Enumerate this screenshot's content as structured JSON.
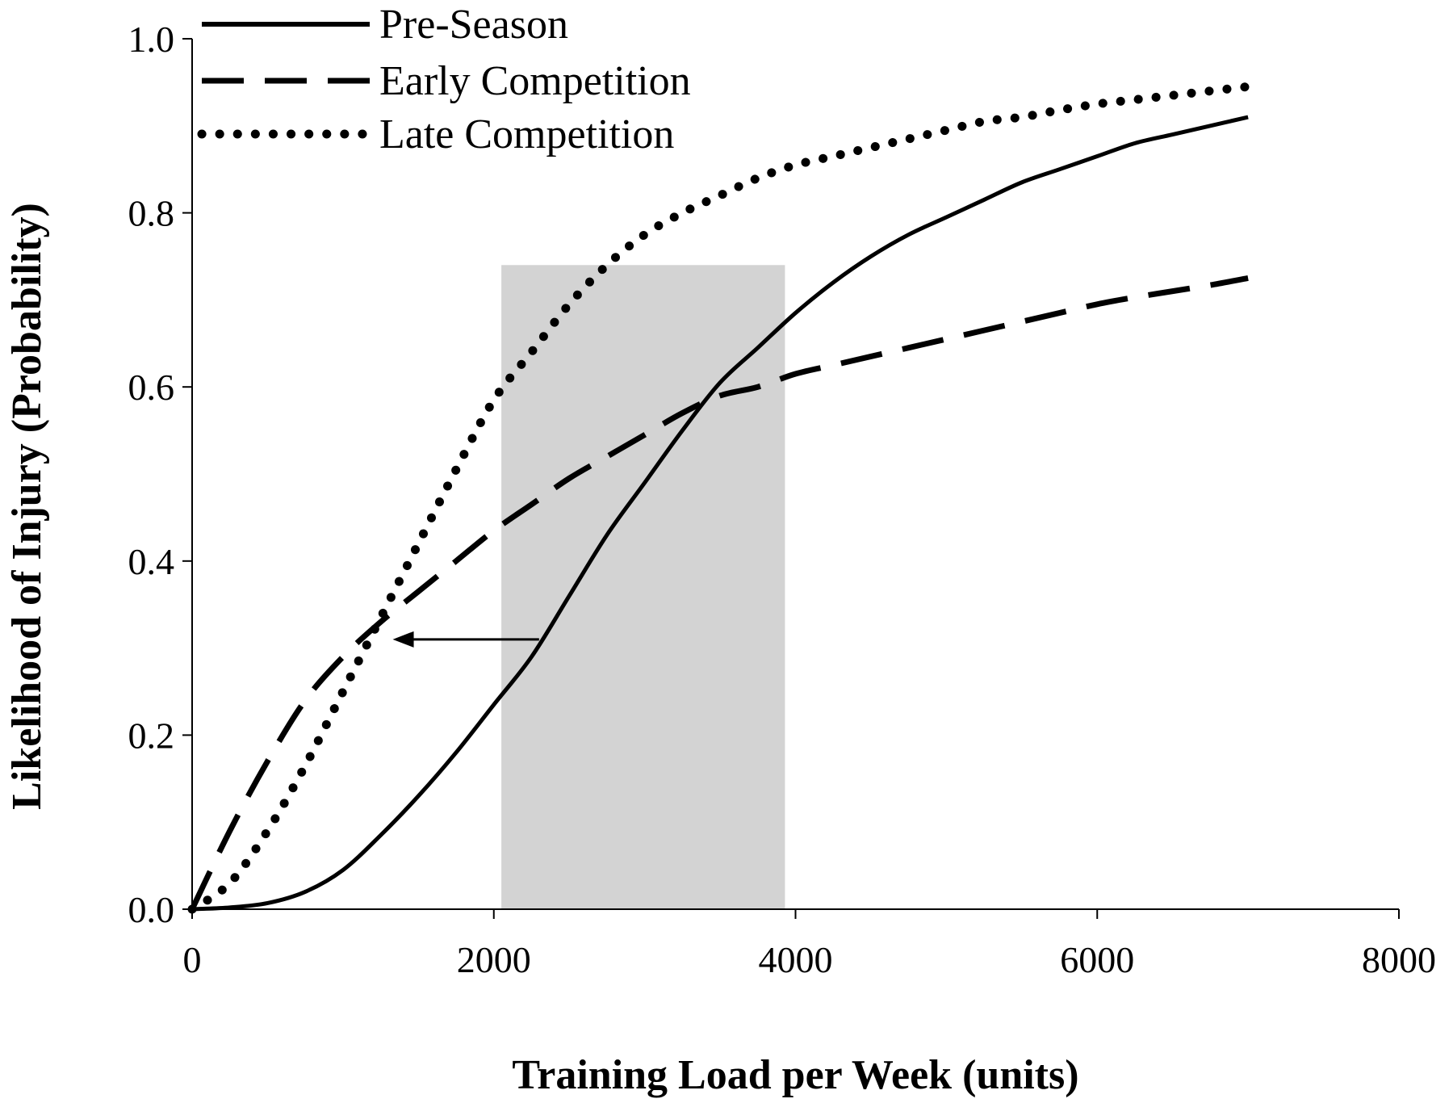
{
  "chart_data": {
    "type": "line",
    "title": "",
    "xlabel": "Training Load per Week (units)",
    "ylabel": "Likelihood of Injury (Probability)",
    "xlim": [
      0,
      8000
    ],
    "ylim": [
      0,
      1.0
    ],
    "x_ticks": [
      "0",
      "2000",
      "4000",
      "6000",
      "8000"
    ],
    "y_ticks": [
      "0.0",
      "0.2",
      "0.4",
      "0.6",
      "0.8",
      "1.0"
    ],
    "grid": false,
    "legend_position": "top-left",
    "shaded_region": {
      "x_start": 2050,
      "x_end": 3930,
      "y_top": 0.74,
      "color": "#d3d3d3"
    },
    "annotation_arrow": {
      "from": [
        2300,
        0.31
      ],
      "to": [
        1330,
        0.31
      ]
    },
    "series": [
      {
        "name": "Pre-Season",
        "style": "solid",
        "x": [
          0,
          250,
          500,
          750,
          1000,
          1250,
          1500,
          1750,
          2000,
          2250,
          2500,
          2750,
          3000,
          3250,
          3500,
          3750,
          4000,
          4250,
          4500,
          4750,
          5000,
          5250,
          5500,
          5750,
          6000,
          6250,
          6500,
          6750,
          7000
        ],
        "values": [
          0.0,
          0.002,
          0.007,
          0.02,
          0.045,
          0.085,
          0.13,
          0.18,
          0.235,
          0.29,
          0.36,
          0.43,
          0.49,
          0.55,
          0.605,
          0.645,
          0.685,
          0.72,
          0.75,
          0.775,
          0.795,
          0.815,
          0.835,
          0.85,
          0.865,
          0.88,
          0.89,
          0.9,
          0.91
        ]
      },
      {
        "name": "Early Competition",
        "style": "dashed",
        "x": [
          0,
          250,
          500,
          750,
          1000,
          1250,
          1500,
          1750,
          2000,
          2250,
          2500,
          2750,
          3000,
          3250,
          3500,
          3750,
          4000,
          4250,
          4500,
          4750,
          5000,
          5250,
          5500,
          5750,
          6000,
          6250,
          6500,
          6750,
          7000
        ],
        "values": [
          0.0,
          0.09,
          0.17,
          0.24,
          0.29,
          0.33,
          0.365,
          0.4,
          0.435,
          0.465,
          0.495,
          0.52,
          0.545,
          0.57,
          0.59,
          0.6,
          0.615,
          0.625,
          0.635,
          0.645,
          0.655,
          0.665,
          0.675,
          0.685,
          0.695,
          0.703,
          0.71,
          0.717,
          0.725
        ]
      },
      {
        "name": "Late Competition",
        "style": "dotted",
        "x": [
          0,
          250,
          500,
          750,
          1000,
          1250,
          1500,
          1750,
          2000,
          2250,
          2500,
          2750,
          3000,
          3250,
          3500,
          3750,
          4000,
          4250,
          4500,
          4750,
          5000,
          5250,
          5500,
          5750,
          6000,
          6250,
          6500,
          6750,
          7000
        ],
        "values": [
          0.0,
          0.03,
          0.09,
          0.165,
          0.25,
          0.335,
          0.42,
          0.505,
          0.585,
          0.64,
          0.695,
          0.74,
          0.775,
          0.8,
          0.82,
          0.84,
          0.855,
          0.865,
          0.875,
          0.885,
          0.895,
          0.905,
          0.91,
          0.918,
          0.925,
          0.93,
          0.935,
          0.94,
          0.945
        ]
      }
    ]
  }
}
